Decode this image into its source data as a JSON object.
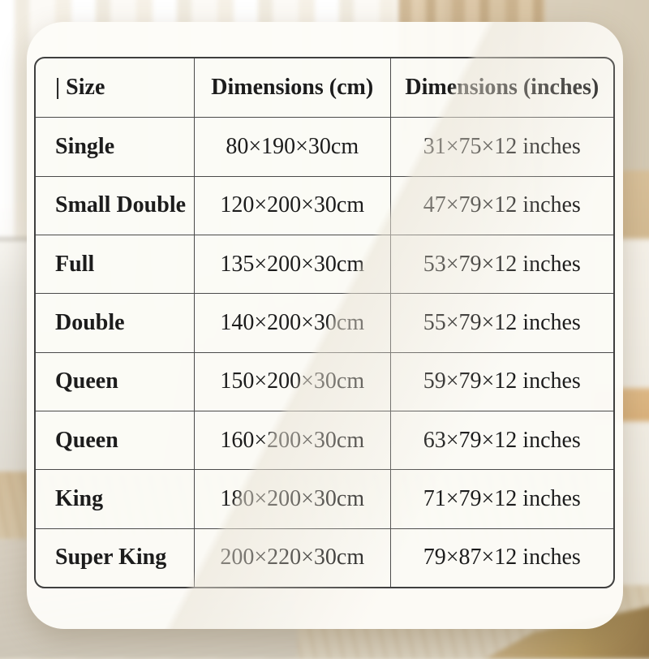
{
  "table": {
    "headers": [
      "| Size",
      "Dimensions (cm)",
      "Dimensions (inches)"
    ],
    "rows": [
      {
        "size": "Single",
        "cm": "80×190×30cm",
        "inches": "31×75×12 inches"
      },
      {
        "size": "Small Double",
        "cm": "120×200×30cm",
        "inches": "47×79×12 inches"
      },
      {
        "size": "Full",
        "cm": "135×200×30cm",
        "inches": "53×79×12 inches"
      },
      {
        "size": "Double",
        "cm": "140×200×30cm",
        "inches": "55×79×12 inches"
      },
      {
        "size": "Queen",
        "cm": "150×200×30cm",
        "inches": "59×79×12 inches"
      },
      {
        "size": "Queen",
        "cm": "160×200×30cm",
        "inches": "63×79×12 inches"
      },
      {
        "size": "King",
        "cm": "180×200×30cm",
        "inches": "71×79×12 inches"
      },
      {
        "size": "Super King",
        "cm": "200×220×30cm",
        "inches": "79×87×12 inches"
      }
    ]
  },
  "chart_data": {
    "type": "table",
    "title": "",
    "columns": [
      "| Size",
      "Dimensions (cm)",
      "Dimensions (inches)"
    ],
    "rows": [
      [
        "Single",
        "80×190×30cm",
        "31×75×12 inches"
      ],
      [
        "Small Double",
        "120×200×30cm",
        "47×79×12 inches"
      ],
      [
        "Full",
        "135×200×30cm",
        "53×79×12 inches"
      ],
      [
        "Double",
        "140×200×30cm",
        "55×79×12 inches"
      ],
      [
        "Queen",
        "150×200×30cm",
        "59×79×12 inches"
      ],
      [
        "Queen",
        "160×200×30cm",
        "63×79×12 inches"
      ],
      [
        "King",
        "180×200×30cm",
        "71×79×12 inches"
      ],
      [
        "Super King",
        "200×220×30cm",
        "79×87×12 inches"
      ]
    ]
  },
  "colors": {
    "card_background": "#fdfcf8",
    "table_border": "#3f3f3f",
    "text": "#1c1c1c",
    "wall_beige": "#cfc4ae",
    "floor_wood": "#d2bd9b"
  }
}
